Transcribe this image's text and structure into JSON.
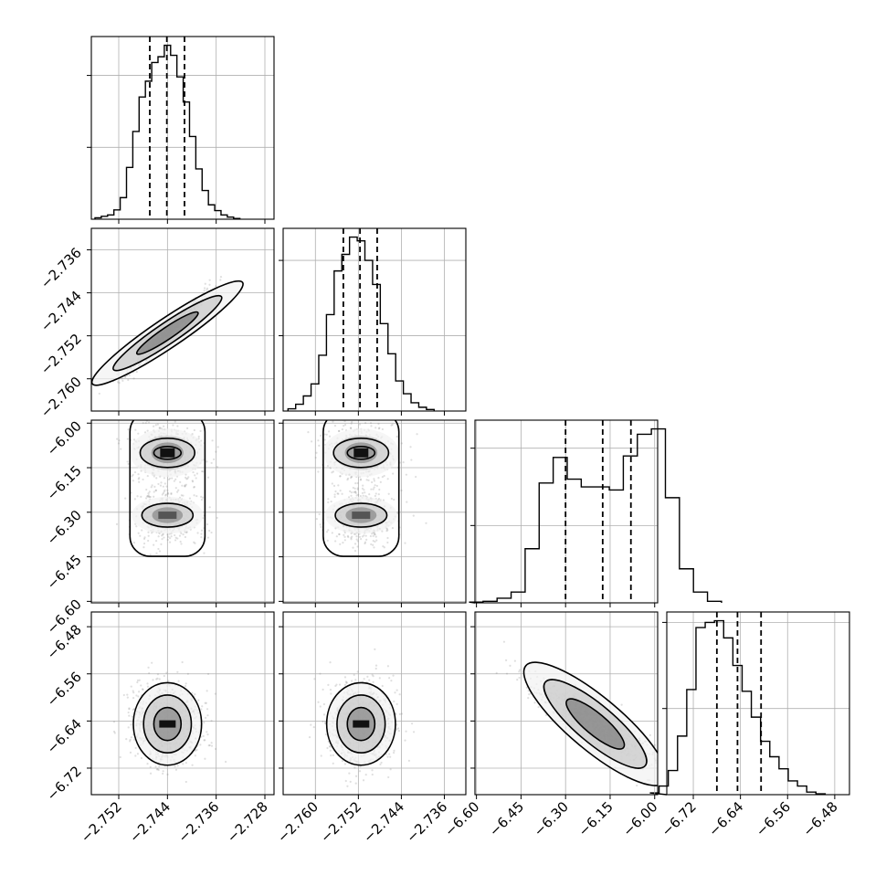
{
  "chart_data": {
    "type": "corner",
    "title": "",
    "grid": true,
    "parameters": [
      {
        "label": "",
        "range": [
          -2.7565,
          -2.7265
        ],
        "mean": -2.744,
        "sd": 0.0028,
        "quantiles": [
          -2.7469,
          -2.7441,
          -2.7412
        ],
        "ticks": [
          -2.752,
          -2.744,
          -2.736,
          -2.728
        ],
        "tick_labels": [
          "−2.752",
          "−2.744",
          "−2.736",
          "−2.728"
        ]
      },
      {
        "label": "",
        "range": [
          -2.766,
          -2.732
        ],
        "mean": -2.7515,
        "sd": 0.0032,
        "quantiles": [
          -2.7548,
          -2.7517,
          -2.7485
        ],
        "ticks": [
          -2.76,
          -2.752,
          -2.744,
          -2.736
        ],
        "tick_labels": [
          "−2.760",
          "−2.752",
          "−2.744",
          "−2.736"
        ]
      },
      {
        "label": "",
        "range": [
          -6.605,
          -5.99
        ],
        "mean": -6.2,
        "sd": 0.1,
        "quantiles": [
          -6.3,
          -6.175,
          -6.08
        ],
        "ticks": [
          -6.6,
          -6.45,
          -6.3,
          -6.15,
          -6.0
        ],
        "tick_labels": [
          "−6.60",
          "−6.45",
          "−6.30",
          "−6.15",
          "−6.00"
        ]
      },
      {
        "label": "",
        "range": [
          -6.765,
          -6.455
        ],
        "mean": -6.645,
        "sd": 0.035,
        "quantiles": [
          -6.68,
          -6.645,
          -6.605
        ],
        "ticks": [
          -6.72,
          -6.64,
          -6.56,
          -6.48
        ],
        "tick_labels": [
          "−6.72",
          "−6.64",
          "−6.56",
          "−6.48"
        ]
      }
    ],
    "histograms": [
      [
        2,
        4,
        6,
        13,
        30,
        72,
        122,
        170,
        192,
        218,
        226,
        242,
        228,
        198,
        163,
        115,
        70,
        40,
        20,
        12,
        6,
        3,
        1
      ],
      [
        3,
        9,
        20,
        36,
        74,
        128,
        186,
        208,
        231,
        226,
        200,
        168,
        116,
        76,
        40,
        23,
        11,
        5,
        2
      ],
      [
        1,
        2,
        6,
        14,
        70,
        155,
        188,
        160,
        150,
        150,
        146,
        190,
        218,
        225,
        136,
        44,
        14,
        2
      ],
      [
        2,
        10,
        28,
        68,
        122,
        194,
        200,
        202,
        182,
        150,
        120,
        90,
        62,
        44,
        30,
        16,
        10,
        3,
        1
      ]
    ],
    "pairs": [
      {
        "x": 0,
        "y": 1,
        "correlation": 0.97,
        "modes": []
      },
      {
        "x": 0,
        "y": 2,
        "correlation": 0.0,
        "modes": [
          -6.1,
          -6.31
        ]
      },
      {
        "x": 1,
        "y": 2,
        "correlation": 0.0,
        "modes": [
          -6.1,
          -6.31
        ]
      },
      {
        "x": 0,
        "y": 3,
        "correlation": 0.0,
        "modes": []
      },
      {
        "x": 1,
        "y": 3,
        "correlation": 0.0,
        "modes": []
      },
      {
        "x": 2,
        "y": 3,
        "correlation": -0.88,
        "modes": []
      }
    ]
  }
}
